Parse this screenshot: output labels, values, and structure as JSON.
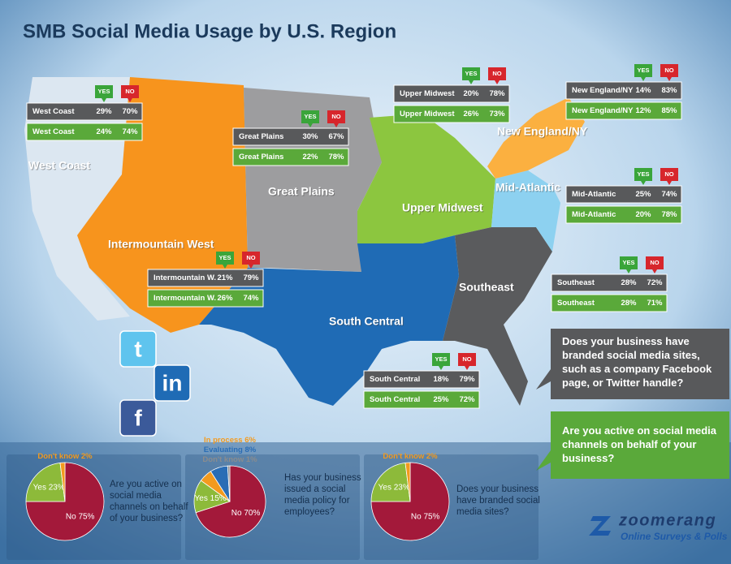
{
  "title": "SMB Social Media Usage by U.S. Region",
  "tags": {
    "yes": "YES",
    "no": "NO"
  },
  "regions": [
    {
      "name": "West Coast",
      "rows": [
        {
          "label": "West Coast",
          "yes": "29%",
          "no": "70%"
        },
        {
          "label": "West Coast",
          "yes": "24%",
          "no": "74%"
        }
      ]
    },
    {
      "name": "Great Plains",
      "rows": [
        {
          "label": "Great Plains",
          "yes": "30%",
          "no": "67%"
        },
        {
          "label": "Great Plains",
          "yes": "22%",
          "no": "78%"
        }
      ]
    },
    {
      "name": "Upper Midwest",
      "rows": [
        {
          "label": "Upper Midwest",
          "yes": "20%",
          "no": "78%"
        },
        {
          "label": "Upper Midwest",
          "yes": "26%",
          "no": "73%"
        }
      ]
    },
    {
      "name": "New England/NY",
      "rows": [
        {
          "label": "New England/NY",
          "yes": "14%",
          "no": "83%"
        },
        {
          "label": "New England/NY",
          "yes": "12%",
          "no": "85%"
        }
      ]
    },
    {
      "name": "Mid-Atlantic",
      "rows": [
        {
          "label": "Mid-Atlantic",
          "yes": "25%",
          "no": "74%"
        },
        {
          "label": "Mid-Atlantic",
          "yes": "20%",
          "no": "78%"
        }
      ]
    },
    {
      "name": "Intermountain West",
      "rows": [
        {
          "label": "Intermountain W.",
          "yes": "21%",
          "no": "79%"
        },
        {
          "label": "Intermountain W.",
          "yes": "26%",
          "no": "74%"
        }
      ]
    },
    {
      "name": "Southeast",
      "rows": [
        {
          "label": "Southeast",
          "yes": "28%",
          "no": "72%"
        },
        {
          "label": "Southeast",
          "yes": "28%",
          "no": "71%"
        }
      ]
    },
    {
      "name": "South Central",
      "rows": [
        {
          "label": "South Central",
          "yes": "18%",
          "no": "79%"
        },
        {
          "label": "South Central",
          "yes": "25%",
          "no": "72%"
        }
      ]
    }
  ],
  "questions": {
    "branded": "Does your business have branded social media sites, such as a company Facebook page, or Twitter handle?",
    "active": "Are you active on social media channels on behalf of your business?"
  },
  "icons": [
    "t",
    "in",
    "f"
  ],
  "logo": {
    "name": "zoomerang",
    "tagline": "Online Surveys & Polls"
  },
  "chart_data": [
    {
      "type": "pie",
      "title": "Are you active on social media channels on behalf of your business?",
      "categories": [
        "No",
        "Yes",
        "Don't know"
      ],
      "values": [
        75,
        23,
        2
      ],
      "value_labels": [
        "75%",
        "23%",
        "2%"
      ],
      "colors": [
        "#a3193a",
        "#8dba3a",
        "#f39a1e"
      ]
    },
    {
      "type": "pie",
      "title": "Has your business issued a social media policy for employees?",
      "categories": [
        "No",
        "Yes",
        "In process",
        "Evaluating",
        "Don't know"
      ],
      "values": [
        70,
        15,
        6,
        8,
        1
      ],
      "value_labels": [
        "70%",
        "15%",
        "6%",
        "8%",
        "1%"
      ],
      "colors": [
        "#a3193a",
        "#8dba3a",
        "#f39a1e",
        "#2a6db5",
        "#8a8c8e"
      ]
    },
    {
      "type": "pie",
      "title": "Does your business have branded social media sites?",
      "categories": [
        "No",
        "Yes",
        "Don't know"
      ],
      "values": [
        75,
        23,
        2
      ],
      "value_labels": [
        "75%",
        "23%",
        "2%"
      ],
      "colors": [
        "#a3193a",
        "#8dba3a",
        "#f39a1e"
      ]
    }
  ]
}
